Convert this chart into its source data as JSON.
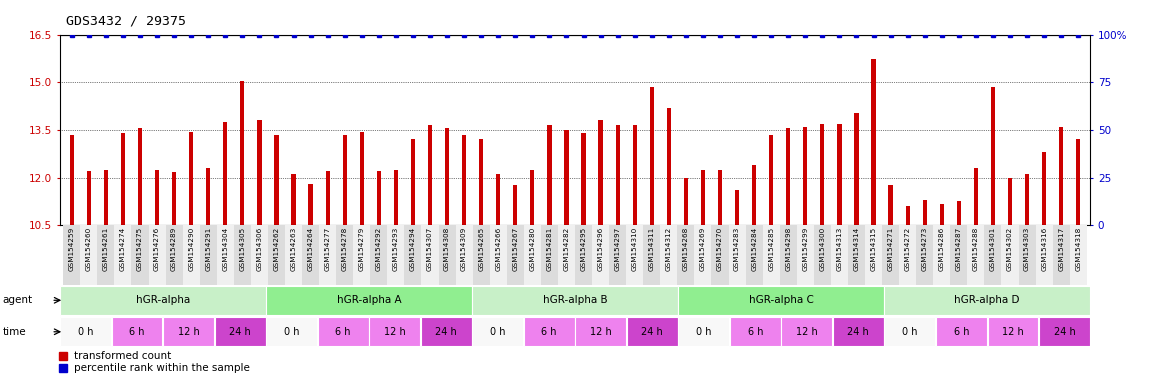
{
  "title": "GDS3432 / 29375",
  "samples": [
    "GSM154259",
    "GSM154260",
    "GSM154261",
    "GSM154274",
    "GSM154275",
    "GSM154276",
    "GSM154289",
    "GSM154290",
    "GSM154291",
    "GSM154304",
    "GSM154305",
    "GSM154306",
    "GSM154262",
    "GSM154263",
    "GSM154264",
    "GSM154277",
    "GSM154278",
    "GSM154279",
    "GSM154292",
    "GSM154293",
    "GSM154294",
    "GSM154307",
    "GSM154308",
    "GSM154309",
    "GSM154265",
    "GSM154266",
    "GSM154267",
    "GSM154280",
    "GSM154281",
    "GSM154282",
    "GSM154295",
    "GSM154296",
    "GSM154297",
    "GSM154310",
    "GSM154311",
    "GSM154312",
    "GSM154268",
    "GSM154269",
    "GSM154270",
    "GSM154283",
    "GSM154284",
    "GSM154285",
    "GSM154298",
    "GSM154299",
    "GSM154300",
    "GSM154313",
    "GSM154314",
    "GSM154315",
    "GSM154271",
    "GSM154272",
    "GSM154273",
    "GSM154286",
    "GSM154287",
    "GSM154288",
    "GSM154301",
    "GSM154302",
    "GSM154303",
    "GSM154316",
    "GSM154317",
    "GSM154318"
  ],
  "red_values": [
    13.35,
    12.2,
    12.25,
    13.4,
    13.55,
    12.25,
    12.17,
    13.45,
    12.3,
    13.75,
    15.05,
    13.8,
    13.35,
    12.1,
    11.8,
    12.2,
    13.35,
    13.45,
    12.2,
    12.25,
    13.2,
    13.65,
    13.55,
    13.35,
    13.2,
    12.1,
    11.75,
    12.25,
    13.65,
    13.5,
    13.4,
    13.8,
    13.65,
    13.65,
    14.85,
    14.2,
    12.0,
    12.25,
    12.25,
    11.6,
    12.4,
    13.35,
    13.55,
    13.6,
    13.7,
    13.7,
    14.05,
    15.75,
    11.75,
    11.1,
    11.3,
    11.15,
    11.25,
    12.3,
    14.85,
    12.0,
    12.1,
    12.8,
    13.6,
    13.2
  ],
  "blue_values": [
    100,
    100,
    100,
    100,
    100,
    100,
    100,
    100,
    100,
    100,
    100,
    100,
    100,
    100,
    100,
    100,
    100,
    100,
    100,
    100,
    100,
    100,
    100,
    100,
    100,
    100,
    100,
    100,
    100,
    100,
    100,
    100,
    100,
    100,
    100,
    100,
    100,
    100,
    100,
    100,
    100,
    100,
    100,
    100,
    100,
    100,
    100,
    100,
    100,
    100,
    100,
    100,
    100,
    100,
    100,
    100,
    100,
    100,
    100,
    100
  ],
  "agents": [
    {
      "label": "hGR-alpha",
      "start": 0,
      "end": 12,
      "color": "#C8F0C8"
    },
    {
      "label": "hGR-alpha A",
      "start": 12,
      "end": 24,
      "color": "#90EE90"
    },
    {
      "label": "hGR-alpha B",
      "start": 24,
      "end": 36,
      "color": "#C8F0C8"
    },
    {
      "label": "hGR-alpha C",
      "start": 36,
      "end": 48,
      "color": "#90EE90"
    },
    {
      "label": "hGR-alpha D",
      "start": 48,
      "end": 60,
      "color": "#C8F0C8"
    }
  ],
  "time_blocks": [
    {
      "label": "0 h",
      "color": "#F8F8F8"
    },
    {
      "label": "6 h",
      "color": "#EE82EE"
    },
    {
      "label": "12 h",
      "color": "#EE82EE"
    },
    {
      "label": "24 h",
      "color": "#CC44CC"
    },
    {
      "label": "0 h",
      "color": "#F8F8F8"
    },
    {
      "label": "6 h",
      "color": "#EE82EE"
    },
    {
      "label": "12 h",
      "color": "#EE82EE"
    },
    {
      "label": "24 h",
      "color": "#CC44CC"
    },
    {
      "label": "0 h",
      "color": "#F8F8F8"
    },
    {
      "label": "6 h",
      "color": "#EE82EE"
    },
    {
      "label": "12 h",
      "color": "#EE82EE"
    },
    {
      "label": "24 h",
      "color": "#CC44CC"
    },
    {
      "label": "0 h",
      "color": "#F8F8F8"
    },
    {
      "label": "6 h",
      "color": "#EE82EE"
    },
    {
      "label": "12 h",
      "color": "#EE82EE"
    },
    {
      "label": "24 h",
      "color": "#CC44CC"
    },
    {
      "label": "0 h",
      "color": "#F8F8F8"
    },
    {
      "label": "6 h",
      "color": "#EE82EE"
    },
    {
      "label": "12 h",
      "color": "#EE82EE"
    },
    {
      "label": "24 h",
      "color": "#CC44CC"
    }
  ],
  "ylim_red": [
    10.5,
    16.5
  ],
  "yticks_red": [
    10.5,
    12.0,
    13.5,
    15.0,
    16.5
  ],
  "ylim_blue": [
    0,
    100
  ],
  "yticks_blue": [
    0,
    25,
    50,
    75,
    100
  ],
  "bar_color": "#CC0000",
  "dot_color": "#0000CC",
  "background_color": "#FFFFFF",
  "legend_red_label": "transformed count",
  "legend_blue_label": "percentile rank within the sample"
}
